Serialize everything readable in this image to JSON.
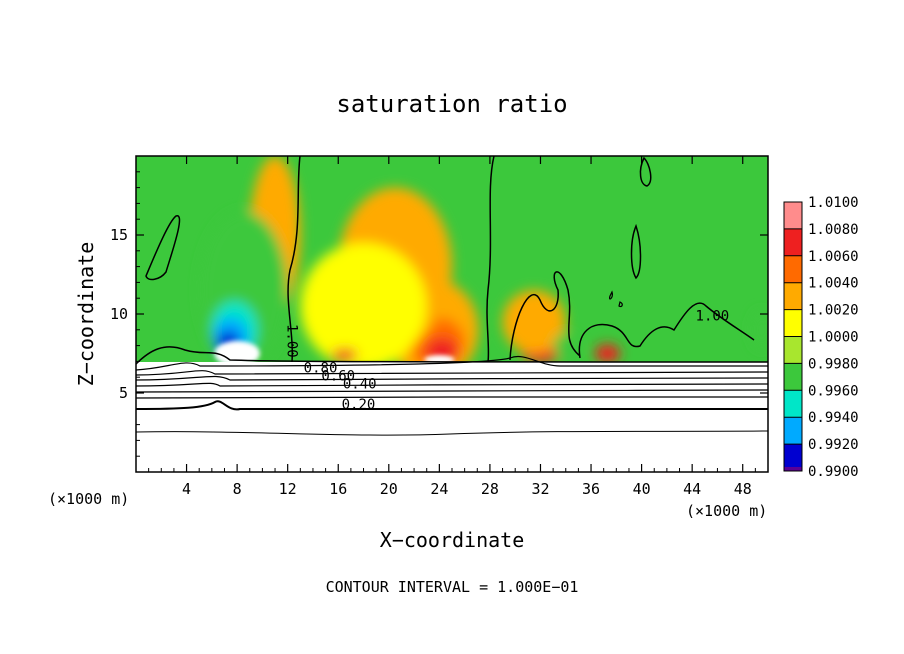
{
  "chart_data": {
    "type": "heatmap",
    "title": "saturation ratio",
    "xlabel": "X−coordinate",
    "ylabel": "Z−coordinate",
    "x_unit": "(×1000 m)",
    "y_unit": "(×1000 m)",
    "xlim": [
      0,
      50
    ],
    "ylim": [
      0,
      20
    ],
    "x_ticks": [
      4,
      8,
      12,
      16,
      20,
      24,
      28,
      32,
      36,
      40,
      44,
      48
    ],
    "y_ticks": [
      5,
      10,
      15
    ],
    "footer": "CONTOUR INTERVAL = 1.000E−01",
    "colorbar": {
      "levels": [
        "1.0100",
        "1.0080",
        "1.0060",
        "1.0040",
        "1.0020",
        "1.0000",
        "0.9980",
        "0.9960",
        "0.9940",
        "0.9920",
        "0.9900"
      ],
      "colors": [
        "#ff8c8c",
        "#ee2020",
        "#ff6a00",
        "#ffaa00",
        "#ffff00",
        "#a8e62e",
        "#3cc83c",
        "#00e6c8",
        "#00aaff",
        "#0000d0",
        "#5a0096"
      ]
    },
    "contour_labels": [
      {
        "text": "1.00",
        "x": 12.0,
        "z": 8.3
      },
      {
        "text": "0.80",
        "x": 14.6,
        "z": 6.3
      },
      {
        "text": "0.60",
        "x": 16.0,
        "z": 5.8
      },
      {
        "text": "0.40",
        "x": 17.7,
        "z": 5.3
      },
      {
        "text": "0.20",
        "x": 17.6,
        "z": 4.0
      },
      {
        "text": "1.00",
        "x": 45.6,
        "z": 9.6
      }
    ],
    "blobs": [
      {
        "value": 1.0035,
        "x": 23.5,
        "z": 9.0,
        "rx": 3.6,
        "rz": 3.2
      },
      {
        "value": 1.0055,
        "x": 23.8,
        "z": 8.2,
        "rx": 2.2,
        "rz": 1.6
      },
      {
        "value": 1.0075,
        "x": 24.2,
        "z": 7.6,
        "rx": 1.3,
        "rz": 0.9
      },
      {
        "value": 1.0025,
        "x": 20.5,
        "z": 13.0,
        "rx": 4.5,
        "rz": 5.0
      },
      {
        "value": 1.0015,
        "x": 18.0,
        "z": 10.5,
        "rx": 5.0,
        "rz": 4.0
      },
      {
        "value": 1.0025,
        "x": 11.0,
        "z": 15.0,
        "rx": 2.0,
        "rz": 5.0
      },
      {
        "value": 1.007,
        "x": 32.0,
        "z": 7.5,
        "rx": 1.5,
        "rz": 0.6
      },
      {
        "value": 1.007,
        "x": 37.3,
        "z": 7.5,
        "rx": 1.0,
        "rz": 0.6
      },
      {
        "value": 1.006,
        "x": 16.5,
        "z": 7.4,
        "rx": 1.0,
        "rz": 0.4
      },
      {
        "value": 1.002,
        "x": 31.5,
        "z": 9.5,
        "rx": 2.5,
        "rz": 2.0
      },
      {
        "value": 0.9975,
        "x": 8.5,
        "z": 11.5,
        "rx": 3.5,
        "rz": 5.0
      },
      {
        "value": 0.996,
        "x": 8.0,
        "z": 10.0,
        "rx": 2.5,
        "rz": 3.0
      },
      {
        "value": 0.994,
        "x": 7.8,
        "z": 9.0,
        "rx": 1.8,
        "rz": 1.8
      },
      {
        "value": 0.992,
        "x": 7.5,
        "z": 8.5,
        "rx": 1.4,
        "rz": 1.3
      },
      {
        "value": 0.9905,
        "x": 7.3,
        "z": 8.2,
        "rx": 0.9,
        "rz": 0.7
      },
      {
        "value": 0.9975,
        "x": 34.0,
        "z": 8.0,
        "rx": 1.0,
        "rz": 0.8
      },
      {
        "value": 0.997,
        "x": 49.5,
        "z": 9.0,
        "rx": 0.8,
        "rz": 1.2
      }
    ],
    "white_regions": [
      {
        "x": 8.0,
        "z": 7.5,
        "rx": 1.8,
        "rz": 0.8
      },
      {
        "x": 24.0,
        "z": 7.1,
        "rx": 1.2,
        "rz": 0.3
      }
    ]
  }
}
